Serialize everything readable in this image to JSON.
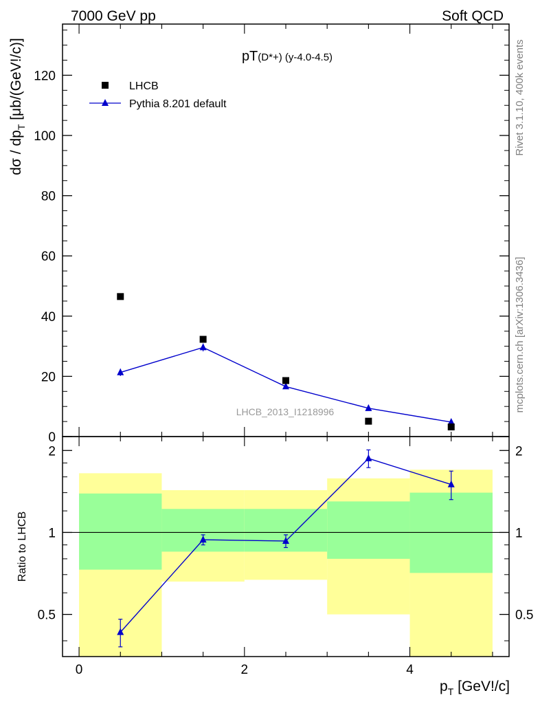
{
  "header": {
    "energy_label": "7000 GeV pp",
    "process_label": "Soft QCD"
  },
  "side_labels": {
    "rivet": "Rivet 3.1.10,  400k events",
    "mcplots": "mcplots.cern.ch [arXiv:1306.3436]"
  },
  "chart_data": [
    {
      "type": "scatter",
      "panel": "main",
      "title_main": "pT",
      "title_sub": "(D*+) (y-4.0-4.5)",
      "ylabel": "dσ / dp_T [μb/(GeV!/c)]",
      "ylabel_main": "dσ / dp",
      "ylabel_sub": "T",
      "ylabel_tail": " [μb/(GeV!/c)]",
      "xlim": [
        -0.2,
        5.2
      ],
      "ylim": [
        0,
        137
      ],
      "yticks": [
        "0",
        "20",
        "40",
        "60",
        "80",
        "100",
        "120"
      ],
      "ytick_values": [
        0,
        20,
        40,
        60,
        80,
        100,
        120
      ],
      "watermark": "LHCB_2013_I1218996",
      "legend_position": "top-left",
      "series": [
        {
          "name": "LHCB",
          "marker": "square",
          "color": "#000000",
          "x": [
            0.5,
            1.5,
            2.5,
            3.5,
            4.5
          ],
          "y": [
            46.5,
            32.3,
            18.6,
            5.1,
            3.2
          ]
        },
        {
          "name": "Pythia 8.201 default",
          "marker": "triangle",
          "color": "#0000cc",
          "x": [
            0.5,
            1.5,
            2.5,
            3.5,
            4.5
          ],
          "y": [
            21.3,
            29.6,
            16.6,
            9.4,
            4.8
          ],
          "yerr": [
            1.2,
            1.3,
            0.8,
            0.5,
            0.3
          ]
        }
      ]
    },
    {
      "type": "scatter",
      "panel": "ratio",
      "ylabel": "Ratio to LHCB",
      "xlabel": "p_T [GeV!/c]",
      "xlabel_main": "p",
      "xlabel_sub": "T",
      "xlabel_tail": " [GeV!/c]",
      "xlim": [
        -0.2,
        5.2
      ],
      "ylim": [
        0.35,
        2.25
      ],
      "xticks": [
        "0",
        "2",
        "4"
      ],
      "xtick_values": [
        0,
        2,
        4
      ],
      "yticks": [
        "0.5",
        "1",
        "2"
      ],
      "ytick_values": [
        0.5,
        1,
        2
      ],
      "reference_line": 1,
      "bands": {
        "outer_color": "#ffff99",
        "inner_color": "#99ff99",
        "bins": [
          {
            "x0": 0,
            "x1": 1,
            "outer": [
              0.35,
              1.65
            ],
            "inner": [
              0.73,
              1.39
            ]
          },
          {
            "x0": 1,
            "x1": 2,
            "outer": [
              0.66,
              1.43
            ],
            "inner": [
              0.85,
              1.22
            ]
          },
          {
            "x0": 2,
            "x1": 3,
            "outer": [
              0.67,
              1.43
            ],
            "inner": [
              0.85,
              1.22
            ]
          },
          {
            "x0": 3,
            "x1": 4,
            "outer": [
              0.5,
              1.58
            ],
            "inner": [
              0.8,
              1.3
            ]
          },
          {
            "x0": 4,
            "x1": 5,
            "outer": [
              0.35,
              1.7
            ],
            "inner": [
              0.71,
              1.4
            ]
          }
        ]
      },
      "series": [
        {
          "name": "Pythia 8.201 default",
          "marker": "triangle",
          "color": "#0000cc",
          "x": [
            0.5,
            1.5,
            2.5,
            3.5,
            4.5
          ],
          "y": [
            0.43,
            0.94,
            0.93,
            1.87,
            1.5
          ],
          "yerr": [
            0.05,
            0.04,
            0.05,
            0.14,
            0.18
          ]
        }
      ]
    }
  ]
}
